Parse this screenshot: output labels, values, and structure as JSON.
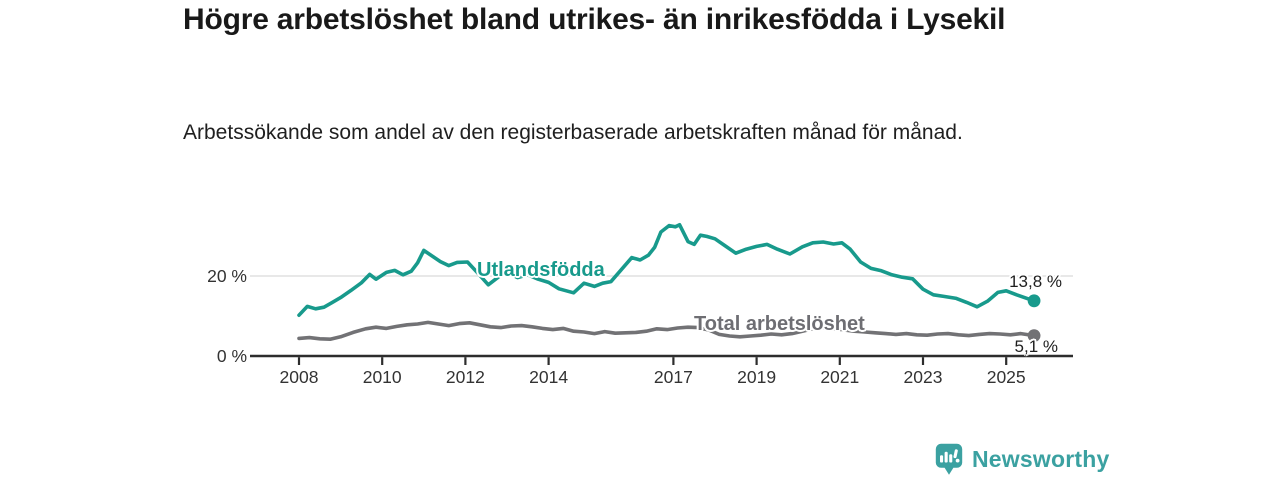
{
  "header": {
    "title": "Högre arbetslöshet bland utrikes- än inrikesfödda i Lysekil",
    "subtitle": "Arbetssökande som andel av den registerbaserade arbetskraften månad för månad."
  },
  "chart_data": {
    "type": "line",
    "title": "Högre arbetslöshet bland utrikes- än inrikesfödda i Lysekil",
    "subtitle": "Arbetssökande som andel av den registerbaserade arbetskraften månad för månad.",
    "x_tick_labels": [
      "2008",
      "2010",
      "2012",
      "2014",
      "2017",
      "2019",
      "2021",
      "2023",
      "2025"
    ],
    "y_ticks": [
      {
        "value": 0,
        "label": "0 %"
      },
      {
        "value": 20,
        "label": "20 %"
      }
    ],
    "gridlines_y": [
      20
    ],
    "ylim": [
      0,
      35
    ],
    "xlim": [
      2006.8,
      2026.6
    ],
    "legend_position": "inline-labels-on-lines",
    "axis_color": "#2d2d2d",
    "grid_color": "#d9d9d9",
    "series": [
      {
        "name": "Utlandsfödda",
        "color": "#189a8c",
        "end_label": "13,8 %",
        "end_value": 13.8,
        "points": [
          [
            2008.0,
            10.2
          ],
          [
            2008.2,
            12.4
          ],
          [
            2008.4,
            11.8
          ],
          [
            2008.6,
            12.2
          ],
          [
            2008.8,
            13.4
          ],
          [
            2009.0,
            14.6
          ],
          [
            2009.25,
            16.4
          ],
          [
            2009.5,
            18.3
          ],
          [
            2009.7,
            20.4
          ],
          [
            2009.85,
            19.2
          ],
          [
            2010.1,
            20.9
          ],
          [
            2010.3,
            21.4
          ],
          [
            2010.5,
            20.3
          ],
          [
            2010.7,
            21.2
          ],
          [
            2010.85,
            23.3
          ],
          [
            2011.0,
            26.4
          ],
          [
            2011.2,
            25.0
          ],
          [
            2011.4,
            23.6
          ],
          [
            2011.6,
            22.6
          ],
          [
            2011.8,
            23.4
          ],
          [
            2012.05,
            23.5
          ],
          [
            2012.3,
            20.7
          ],
          [
            2012.55,
            17.8
          ],
          [
            2012.8,
            19.8
          ],
          [
            2013.0,
            21.0
          ],
          [
            2013.25,
            19.6
          ],
          [
            2013.5,
            20.3
          ],
          [
            2013.75,
            19.2
          ],
          [
            2014.0,
            18.4
          ],
          [
            2014.25,
            16.8
          ],
          [
            2014.6,
            15.8
          ],
          [
            2014.85,
            18.2
          ],
          [
            2015.1,
            17.4
          ],
          [
            2015.3,
            18.2
          ],
          [
            2015.5,
            18.6
          ],
          [
            2015.75,
            21.6
          ],
          [
            2016.0,
            24.6
          ],
          [
            2016.2,
            24.0
          ],
          [
            2016.4,
            25.2
          ],
          [
            2016.55,
            27.2
          ],
          [
            2016.7,
            31.0
          ],
          [
            2016.9,
            32.6
          ],
          [
            2017.05,
            32.3
          ],
          [
            2017.15,
            32.8
          ],
          [
            2017.35,
            28.6
          ],
          [
            2017.5,
            27.9
          ],
          [
            2017.65,
            30.2
          ],
          [
            2017.8,
            29.9
          ],
          [
            2018.0,
            29.3
          ],
          [
            2018.25,
            27.5
          ],
          [
            2018.5,
            25.7
          ],
          [
            2018.75,
            26.7
          ],
          [
            2019.0,
            27.4
          ],
          [
            2019.25,
            27.9
          ],
          [
            2019.5,
            26.7
          ],
          [
            2019.8,
            25.5
          ],
          [
            2020.1,
            27.3
          ],
          [
            2020.35,
            28.3
          ],
          [
            2020.6,
            28.5
          ],
          [
            2020.85,
            28.0
          ],
          [
            2021.05,
            28.3
          ],
          [
            2021.25,
            26.7
          ],
          [
            2021.5,
            23.5
          ],
          [
            2021.75,
            21.9
          ],
          [
            2022.0,
            21.3
          ],
          [
            2022.25,
            20.3
          ],
          [
            2022.5,
            19.7
          ],
          [
            2022.75,
            19.3
          ],
          [
            2023.0,
            16.7
          ],
          [
            2023.25,
            15.3
          ],
          [
            2023.5,
            14.9
          ],
          [
            2023.8,
            14.4
          ],
          [
            2024.05,
            13.4
          ],
          [
            2024.3,
            12.3
          ],
          [
            2024.55,
            13.7
          ],
          [
            2024.8,
            15.9
          ],
          [
            2025.0,
            16.3
          ],
          [
            2025.25,
            15.3
          ],
          [
            2025.5,
            14.4
          ],
          [
            2025.67,
            13.8
          ]
        ]
      },
      {
        "name": "Total arbetslöshet",
        "color": "#727275",
        "end_label": "5,1 %",
        "end_value": 5.1,
        "points": [
          [
            2008.0,
            4.4
          ],
          [
            2008.25,
            4.6
          ],
          [
            2008.5,
            4.3
          ],
          [
            2008.75,
            4.2
          ],
          [
            2009.0,
            4.8
          ],
          [
            2009.3,
            5.9
          ],
          [
            2009.6,
            6.8
          ],
          [
            2009.85,
            7.2
          ],
          [
            2010.1,
            6.9
          ],
          [
            2010.35,
            7.4
          ],
          [
            2010.6,
            7.8
          ],
          [
            2010.85,
            8.0
          ],
          [
            2011.1,
            8.4
          ],
          [
            2011.35,
            8.0
          ],
          [
            2011.6,
            7.6
          ],
          [
            2011.85,
            8.1
          ],
          [
            2012.1,
            8.3
          ],
          [
            2012.35,
            7.8
          ],
          [
            2012.6,
            7.3
          ],
          [
            2012.85,
            7.1
          ],
          [
            2013.1,
            7.5
          ],
          [
            2013.35,
            7.6
          ],
          [
            2013.6,
            7.3
          ],
          [
            2013.85,
            6.9
          ],
          [
            2014.1,
            6.6
          ],
          [
            2014.35,
            6.9
          ],
          [
            2014.6,
            6.2
          ],
          [
            2014.85,
            6.0
          ],
          [
            2015.1,
            5.6
          ],
          [
            2015.35,
            6.1
          ],
          [
            2015.6,
            5.7
          ],
          [
            2015.85,
            5.8
          ],
          [
            2016.1,
            5.9
          ],
          [
            2016.35,
            6.2
          ],
          [
            2016.6,
            6.8
          ],
          [
            2016.85,
            6.6
          ],
          [
            2017.1,
            7.0
          ],
          [
            2017.35,
            7.2
          ],
          [
            2017.6,
            7.1
          ],
          [
            2017.85,
            6.5
          ],
          [
            2018.1,
            5.4
          ],
          [
            2018.35,
            5.0
          ],
          [
            2018.6,
            4.8
          ],
          [
            2018.85,
            5.0
          ],
          [
            2019.1,
            5.2
          ],
          [
            2019.35,
            5.5
          ],
          [
            2019.6,
            5.3
          ],
          [
            2019.85,
            5.6
          ],
          [
            2020.1,
            6.2
          ],
          [
            2020.35,
            6.8
          ],
          [
            2020.6,
            7.0
          ],
          [
            2020.85,
            6.8
          ],
          [
            2021.1,
            6.5
          ],
          [
            2021.35,
            6.2
          ],
          [
            2021.6,
            6.0
          ],
          [
            2021.85,
            5.8
          ],
          [
            2022.1,
            5.6
          ],
          [
            2022.35,
            5.4
          ],
          [
            2022.6,
            5.6
          ],
          [
            2022.85,
            5.3
          ],
          [
            2023.1,
            5.2
          ],
          [
            2023.35,
            5.5
          ],
          [
            2023.6,
            5.6
          ],
          [
            2023.85,
            5.3
          ],
          [
            2024.1,
            5.1
          ],
          [
            2024.35,
            5.4
          ],
          [
            2024.6,
            5.6
          ],
          [
            2024.85,
            5.5
          ],
          [
            2025.1,
            5.3
          ],
          [
            2025.35,
            5.6
          ],
          [
            2025.67,
            5.1
          ]
        ]
      }
    ]
  },
  "footer": {
    "brand": "Newsworthy",
    "brand_color": "#3ba1a1"
  }
}
